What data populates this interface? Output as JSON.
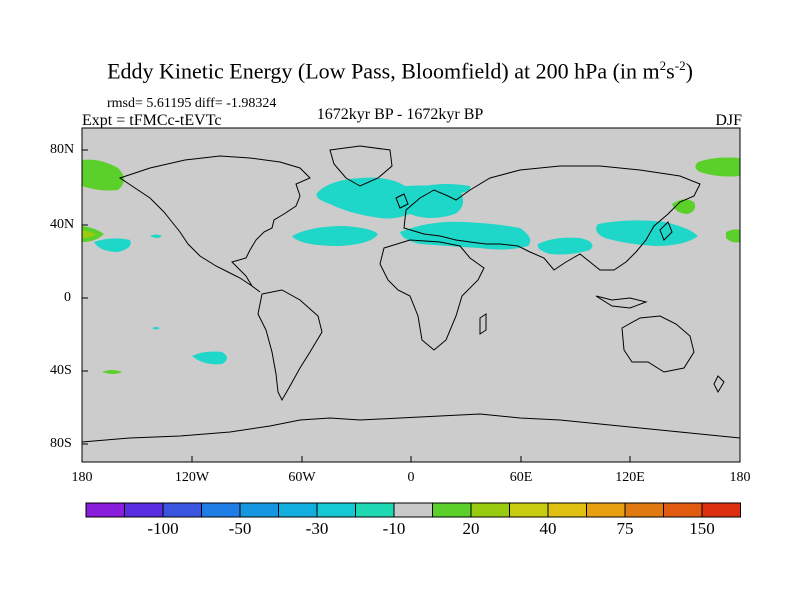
{
  "title": {
    "main": "Eddy Kinetic Energy (Low Pass, Bloomfield) at 200 hPa (in m",
    "exp1": "2",
    "mid": "s",
    "exp2": "-2",
    "close": ")"
  },
  "stats": "rmsd= 5.61195 diff= -1.98324",
  "experiment": "Expt = tFMCc-tEVTc",
  "period": "1672kyr BP - 1672kyr BP",
  "season": "DJF",
  "lat_labels": [
    "80N",
    "40N",
    "0",
    "40S",
    "80S"
  ],
  "lon_labels": [
    "180",
    "120W",
    "60W",
    "0",
    "60E",
    "120E",
    "180"
  ],
  "colorbar": {
    "colors": [
      "#8a1cdc",
      "#5a2ee0",
      "#3a55e0",
      "#1e7ee6",
      "#1596e0",
      "#13aee0",
      "#14c8d4",
      "#1ed8b4",
      "#c9c9c9",
      "#5bd02a",
      "#99cc10",
      "#c8cc10",
      "#e0c010",
      "#e8a010",
      "#e07a10",
      "#e05a10",
      "#dc3010"
    ],
    "labels": [
      "-100",
      "-50",
      "-30",
      "-10",
      "20",
      "40",
      "75",
      "150"
    ]
  },
  "map_colors": {
    "ocean": "#cccccc",
    "cyan": "#1ed7c8",
    "green": "#5bd02a",
    "olive": "#99cc10"
  }
}
